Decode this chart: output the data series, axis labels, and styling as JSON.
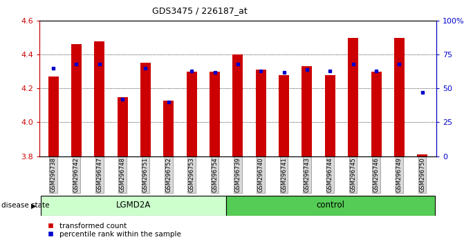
{
  "title": "GDS3475 / 226187_at",
  "samples": [
    "GSM296738",
    "GSM296742",
    "GSM296747",
    "GSM296748",
    "GSM296751",
    "GSM296752",
    "GSM296753",
    "GSM296754",
    "GSM296739",
    "GSM296740",
    "GSM296741",
    "GSM296743",
    "GSM296744",
    "GSM296745",
    "GSM296746",
    "GSM296749",
    "GSM296750"
  ],
  "red_values": [
    4.27,
    4.46,
    4.48,
    4.15,
    4.35,
    4.13,
    4.3,
    4.3,
    4.4,
    4.31,
    4.28,
    4.33,
    4.28,
    4.5,
    4.3,
    4.5,
    3.81
  ],
  "blue_percentiles": [
    65,
    68,
    68,
    42,
    65,
    40,
    63,
    62,
    68,
    63,
    62,
    64,
    63,
    68,
    63,
    68,
    47
  ],
  "ylim_left": [
    3.8,
    4.6
  ],
  "ylim_right": [
    0,
    100
  ],
  "baseline": 3.8,
  "bar_color": "#cc0000",
  "blue_color": "#0000cc",
  "lgmd2a_color": "#ccffcc",
  "control_color": "#55cc55",
  "tick_bg": "#d8d8d8",
  "group_label_lgmd2a": "LGMD2A",
  "group_label_control": "control",
  "disease_state_label": "disease state",
  "legend_red": "transformed count",
  "legend_blue": "percentile rank within the sample",
  "left_yticks": [
    3.8,
    4.0,
    4.2,
    4.4,
    4.6
  ],
  "right_yticks": [
    0,
    25,
    50,
    75,
    100
  ],
  "right_yticklabels": [
    "0",
    "25",
    "50",
    "75",
    "100%"
  ],
  "n_lgmd2a": 8,
  "n_total": 17,
  "bar_width": 0.45
}
